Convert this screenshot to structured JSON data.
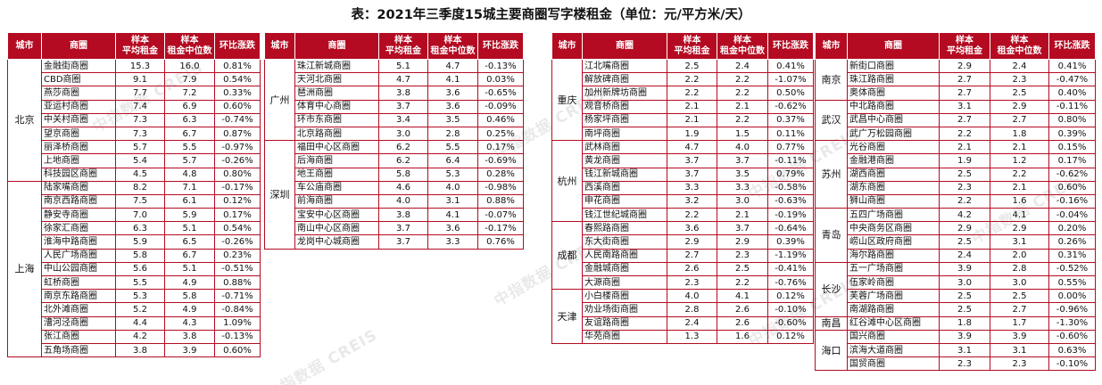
{
  "title": "表：2021年三季度15城主要商圈写字楼租金（单位：元/平方米/天）",
  "watermark": "中指数据 CREIS",
  "headers": {
    "city": "城市",
    "district": "商圈",
    "avg_a": "样本",
    "avg_b": "平均租金",
    "med_a": "样本",
    "med_b": "租金中位数",
    "change": "环比涨跌"
  },
  "tables": [
    {
      "groups": [
        {
          "city": "北京",
          "rows": [
            [
              "金融街商圈",
              "15.3",
              "16.0",
              "0.81%"
            ],
            [
              "CBD商圈",
              "9.1",
              "7.9",
              "0.54%"
            ],
            [
              "燕莎商圈",
              "7.7",
              "7.2",
              "0.33%"
            ],
            [
              "亚运村商圈",
              "7.4",
              "6.9",
              "0.60%"
            ],
            [
              "中关村商圈",
              "7.3",
              "6.3",
              "-0.74%"
            ],
            [
              "望京商圈",
              "7.3",
              "6.7",
              "0.87%"
            ],
            [
              "丽泽桥商圈",
              "5.7",
              "5.5",
              "-0.97%"
            ],
            [
              "上地商圈",
              "5.4",
              "5.7",
              "-0.26%"
            ],
            [
              "科技园区商圈",
              "4.5",
              "4.8",
              "0.80%"
            ]
          ]
        },
        {
          "city": "上海",
          "rows": [
            [
              "陆家嘴商圈",
              "8.2",
              "7.1",
              "-0.17%"
            ],
            [
              "南京西路商圈",
              "7.5",
              "6.1",
              "0.12%"
            ],
            [
              "静安寺商圈",
              "7.0",
              "5.9",
              "0.17%"
            ],
            [
              "徐家汇商圈",
              "6.3",
              "5.1",
              "0.54%"
            ],
            [
              "淮海中路商圈",
              "5.9",
              "6.5",
              "-0.26%"
            ],
            [
              "人民广场商圈",
              "5.8",
              "6.7",
              "0.23%"
            ],
            [
              "中山公园商圈",
              "5.6",
              "5.1",
              "-0.51%"
            ],
            [
              "虹桥商圈",
              "5.5",
              "4.9",
              "0.88%"
            ],
            [
              "南京东路商圈",
              "5.3",
              "5.8",
              "-0.71%"
            ],
            [
              "北外滩商圈",
              "5.2",
              "4.9",
              "-0.84%"
            ],
            [
              "漕河泾商圈",
              "4.4",
              "4.3",
              "1.09%"
            ],
            [
              "张江商圈",
              "4.2",
              "3.8",
              "-0.13%"
            ],
            [
              "五角场商圈",
              "3.8",
              "3.9",
              "0.60%"
            ]
          ]
        }
      ]
    },
    {
      "groups": [
        {
          "city": "广州",
          "rows": [
            [
              "珠江新城商圈",
              "5.1",
              "4.7",
              "-0.13%"
            ],
            [
              "天河北商圈",
              "4.7",
              "4.1",
              "0.03%"
            ],
            [
              "琶洲商圈",
              "3.8",
              "3.6",
              "-0.65%"
            ],
            [
              "体育中心商圈",
              "3.7",
              "3.6",
              "-0.09%"
            ],
            [
              "环市东商圈",
              "3.4",
              "3.5",
              "0.46%"
            ],
            [
              "北京路商圈",
              "3.0",
              "2.8",
              "0.25%"
            ]
          ]
        },
        {
          "city": "深圳",
          "rows": [
            [
              "福田中心区商圈",
              "6.2",
              "5.5",
              "0.17%"
            ],
            [
              "后海商圈",
              "6.2",
              "6.4",
              "-0.69%"
            ],
            [
              "地王商圈",
              "5.8",
              "5.3",
              "0.28%"
            ],
            [
              "车公庙商圈",
              "4.6",
              "4.0",
              "-0.98%"
            ],
            [
              "前海商圈",
              "4.0",
              "3.1",
              "0.88%"
            ],
            [
              "宝安中心区商圈",
              "3.8",
              "4.1",
              "-0.07%"
            ],
            [
              "南山中心区商圈",
              "3.7",
              "3.6",
              "-0.17%"
            ],
            [
              "龙岗中心城商圈",
              "3.7",
              "3.3",
              "0.76%"
            ]
          ]
        }
      ]
    },
    {
      "groups": [
        {
          "city": "重庆",
          "rows": [
            [
              "江北嘴商圈",
              "2.5",
              "2.4",
              "0.41%"
            ],
            [
              "解放碑商圈",
              "2.2",
              "2.2",
              "-1.07%"
            ],
            [
              "加州新牌坊商圈",
              "2.2",
              "2.2",
              "0.50%"
            ],
            [
              "观音桥商圈",
              "2.1",
              "2.1",
              "-0.62%"
            ],
            [
              "杨家坪商圈",
              "2.1",
              "2.2",
              "0.37%"
            ],
            [
              "南坪商圈",
              "1.9",
              "1.5",
              "0.11%"
            ]
          ]
        },
        {
          "city": "杭州",
          "rows": [
            [
              "武林商圈",
              "4.7",
              "4.0",
              "0.77%"
            ],
            [
              "黄龙商圈",
              "3.7",
              "3.7",
              "-0.11%"
            ],
            [
              "钱江新城商圈",
              "3.7",
              "3.5",
              "0.79%"
            ],
            [
              "西溪商圈",
              "3.3",
              "3.3",
              "-0.58%"
            ],
            [
              "申花商圈",
              "3.2",
              "3.0",
              "-0.63%"
            ],
            [
              "钱江世纪城商圈",
              "2.2",
              "2.1",
              "-0.19%"
            ]
          ]
        },
        {
          "city": "成都",
          "rows": [
            [
              "春熙路商圈",
              "3.6",
              "3.7",
              "-0.64%"
            ],
            [
              "东大街商圈",
              "2.9",
              "2.9",
              "0.39%"
            ],
            [
              "人民南路商圈",
              "2.7",
              "2.3",
              "-1.19%"
            ],
            [
              "金融城商圈",
              "2.6",
              "2.5",
              "-0.41%"
            ],
            [
              "大源商圈",
              "2.3",
              "2.2",
              "-0.76%"
            ]
          ]
        },
        {
          "city": "天津",
          "rows": [
            [
              "小白楼商圈",
              "4.0",
              "4.1",
              "0.12%"
            ],
            [
              "劝业场街商圈",
              "2.8",
              "2.6",
              "-0.10%"
            ],
            [
              "友谊路商圈",
              "2.4",
              "2.6",
              "-0.60%"
            ],
            [
              "华苑商圈",
              "1.3",
              "1.6",
              "0.12%"
            ]
          ]
        }
      ]
    },
    {
      "groups": [
        {
          "city": "南京",
          "rows": [
            [
              "新街口商圈",
              "2.9",
              "2.4",
              "0.41%"
            ],
            [
              "珠江路商圈",
              "2.7",
              "2.3",
              "-0.47%"
            ],
            [
              "奥体商圈",
              "2.7",
              "2.5",
              "0.40%"
            ]
          ]
        },
        {
          "city": "武汉",
          "rows": [
            [
              "中北路商圈",
              "3.1",
              "2.9",
              "-0.11%"
            ],
            [
              "武昌中心商圈",
              "2.7",
              "2.7",
              "0.80%"
            ],
            [
              "武广万松园商圈",
              "2.2",
              "1.8",
              "0.39%"
            ]
          ]
        },
        {
          "city": "苏州",
          "rows": [
            [
              "光谷商圈",
              "2.1",
              "2.1",
              "0.15%"
            ],
            [
              "金融港商圈",
              "1.9",
              "1.2",
              "0.17%"
            ],
            [
              "湖西商圈",
              "2.5",
              "2.2",
              "-0.62%"
            ],
            [
              "湖东商圈",
              "2.3",
              "2.1",
              "0.60%"
            ],
            [
              "狮山商圈",
              "2.2",
              "1.6",
              "-0.16%"
            ]
          ]
        },
        {
          "city": "青岛",
          "rows": [
            [
              "五四广场商圈",
              "4.2",
              "4.1",
              "-0.04%"
            ],
            [
              "中央商务区商圈",
              "2.9",
              "2.9",
              "0.20%"
            ],
            [
              "崂山区政府商圈",
              "2.5",
              "3.1",
              "0.26%"
            ],
            [
              "海尔路商圈",
              "2.4",
              "2.0",
              "0.31%"
            ]
          ]
        },
        {
          "city": "长沙",
          "rows": [
            [
              "五一广场商圈",
              "3.9",
              "2.8",
              "-0.52%"
            ],
            [
              "伍家岭商圈",
              "3.0",
              "3.0",
              "0.55%"
            ],
            [
              "芙蓉广场商圈",
              "2.5",
              "2.5",
              "0.00%"
            ],
            [
              "南湖路商圈",
              "2.5",
              "2.7",
              "-0.96%"
            ]
          ]
        },
        {
          "city": "南昌",
          "rows": [
            [
              "红谷滩中心区商圈",
              "1.8",
              "1.7",
              "-1.30%"
            ]
          ]
        },
        {
          "city": "海口",
          "rows": [
            [
              "国兴商圈",
              "3.9",
              "3.9",
              "-0.60%"
            ],
            [
              "滨海大道商圈",
              "3.1",
              "3.1",
              "0.63%"
            ],
            [
              "国贸商圈",
              "2.3",
              "2.3",
              "-0.10%"
            ]
          ]
        }
      ]
    }
  ]
}
